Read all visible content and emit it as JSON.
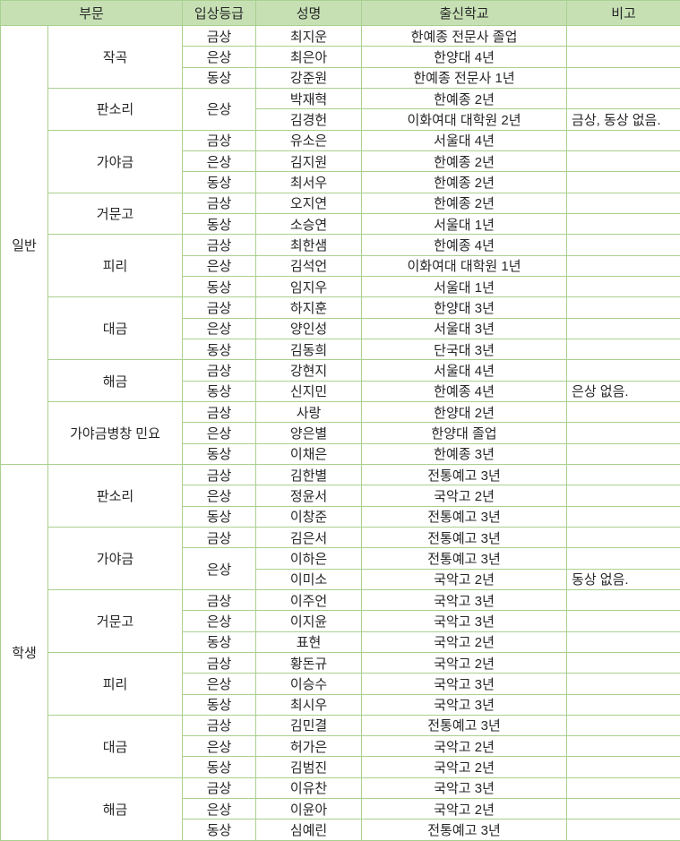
{
  "table": {
    "columns": [
      "부문",
      "입상등급",
      "성명",
      "출신학교",
      "비고"
    ],
    "colors": {
      "header_bg": "#c6e0b4",
      "border": "#a9d08e",
      "text": "#262626",
      "cell_bg": "#ffffff"
    },
    "sections": [
      {
        "label": "일반",
        "categories": [
          {
            "name": "작곡",
            "groups": [
              {
                "grade": "금상",
                "entries": [
                  {
                    "name": "최지운",
                    "school": "한예종 전문사 졸업",
                    "note": ""
                  }
                ]
              },
              {
                "grade": "은상",
                "entries": [
                  {
                    "name": "최은아",
                    "school": "한양대 4년",
                    "note": ""
                  }
                ]
              },
              {
                "grade": "동상",
                "entries": [
                  {
                    "name": "강준원",
                    "school": "한예종 전문사 1년",
                    "note": ""
                  }
                ]
              }
            ]
          },
          {
            "name": "판소리",
            "groups": [
              {
                "grade": "은상",
                "entries": [
                  {
                    "name": "박재혁",
                    "school": "한예종 2년",
                    "note": ""
                  },
                  {
                    "name": "김경헌",
                    "school": "이화여대 대학원 2년",
                    "note": "금상, 동상 없음."
                  }
                ]
              }
            ]
          },
          {
            "name": "가야금",
            "groups": [
              {
                "grade": "금상",
                "entries": [
                  {
                    "name": "유소은",
                    "school": "서울대 4년",
                    "note": ""
                  }
                ]
              },
              {
                "grade": "은상",
                "entries": [
                  {
                    "name": "김지원",
                    "school": "한예종 2년",
                    "note": ""
                  }
                ]
              },
              {
                "grade": "동상",
                "entries": [
                  {
                    "name": "최서우",
                    "school": "한예종 2년",
                    "note": ""
                  }
                ]
              }
            ]
          },
          {
            "name": "거문고",
            "groups": [
              {
                "grade": "금상",
                "entries": [
                  {
                    "name": "오지연",
                    "school": "한예종 2년",
                    "note": ""
                  }
                ]
              },
              {
                "grade": "동상",
                "entries": [
                  {
                    "name": "소승연",
                    "school": "서울대 1년",
                    "note": ""
                  }
                ]
              }
            ]
          },
          {
            "name": "피리",
            "groups": [
              {
                "grade": "금상",
                "entries": [
                  {
                    "name": "최한샘",
                    "school": "한예종 4년",
                    "note": ""
                  }
                ]
              },
              {
                "grade": "은상",
                "entries": [
                  {
                    "name": "김석언",
                    "school": "이화여대 대학원 1년",
                    "note": ""
                  }
                ]
              },
              {
                "grade": "동상",
                "entries": [
                  {
                    "name": "임지우",
                    "school": "서울대 1년",
                    "note": ""
                  }
                ]
              }
            ]
          },
          {
            "name": "대금",
            "groups": [
              {
                "grade": "금상",
                "entries": [
                  {
                    "name": "하지훈",
                    "school": "한양대 3년",
                    "note": ""
                  }
                ]
              },
              {
                "grade": "은상",
                "entries": [
                  {
                    "name": "양인성",
                    "school": "서울대 3년",
                    "note": ""
                  }
                ]
              },
              {
                "grade": "동상",
                "entries": [
                  {
                    "name": "김동희",
                    "school": "단국대 3년",
                    "note": ""
                  }
                ]
              }
            ]
          },
          {
            "name": "해금",
            "groups": [
              {
                "grade": "금상",
                "entries": [
                  {
                    "name": "강현지",
                    "school": "서울대 4년",
                    "note": ""
                  }
                ]
              },
              {
                "grade": "동상",
                "entries": [
                  {
                    "name": "신지민",
                    "school": "한예종 4년",
                    "note": "은상 없음."
                  }
                ]
              }
            ]
          },
          {
            "name": "가야금병창 민요",
            "groups": [
              {
                "grade": "금상",
                "entries": [
                  {
                    "name": "사랑",
                    "school": "한양대 2년",
                    "note": ""
                  }
                ]
              },
              {
                "grade": "은상",
                "entries": [
                  {
                    "name": "양은별",
                    "school": "한양대 졸업",
                    "note": ""
                  }
                ]
              },
              {
                "grade": "동상",
                "entries": [
                  {
                    "name": "이채은",
                    "school": "한예종 3년",
                    "note": ""
                  }
                ]
              }
            ]
          }
        ]
      },
      {
        "label": "학생",
        "categories": [
          {
            "name": "판소리",
            "groups": [
              {
                "grade": "금상",
                "entries": [
                  {
                    "name": "김한별",
                    "school": "전통예고 3년",
                    "note": ""
                  }
                ]
              },
              {
                "grade": "은상",
                "entries": [
                  {
                    "name": "정윤서",
                    "school": "국악고 2년",
                    "note": ""
                  }
                ]
              },
              {
                "grade": "동상",
                "entries": [
                  {
                    "name": "이창준",
                    "school": "전통예고 3년",
                    "note": ""
                  }
                ]
              }
            ]
          },
          {
            "name": "가야금",
            "groups": [
              {
                "grade": "금상",
                "entries": [
                  {
                    "name": "김은서",
                    "school": "전통예고 3년",
                    "note": ""
                  }
                ]
              },
              {
                "grade": "은상",
                "entries": [
                  {
                    "name": "이하은",
                    "school": "전통예고 3년",
                    "note": ""
                  },
                  {
                    "name": "이미소",
                    "school": "국악고 2년",
                    "note": "동상 없음."
                  }
                ]
              }
            ]
          },
          {
            "name": "거문고",
            "groups": [
              {
                "grade": "금상",
                "entries": [
                  {
                    "name": "이주언",
                    "school": "국악고 3년",
                    "note": ""
                  }
                ]
              },
              {
                "grade": "은상",
                "entries": [
                  {
                    "name": "이지윤",
                    "school": "국악고 3년",
                    "note": ""
                  }
                ]
              },
              {
                "grade": "동상",
                "entries": [
                  {
                    "name": "표현",
                    "school": "국악고 2년",
                    "note": ""
                  }
                ]
              }
            ]
          },
          {
            "name": "피리",
            "groups": [
              {
                "grade": "금상",
                "entries": [
                  {
                    "name": "황돈규",
                    "school": "국악고 2년",
                    "note": ""
                  }
                ]
              },
              {
                "grade": "은상",
                "entries": [
                  {
                    "name": "이승수",
                    "school": "국악고 3년",
                    "note": ""
                  }
                ]
              },
              {
                "grade": "동상",
                "entries": [
                  {
                    "name": "최시우",
                    "school": "국악고 3년",
                    "note": ""
                  }
                ]
              }
            ]
          },
          {
            "name": "대금",
            "groups": [
              {
                "grade": "금상",
                "entries": [
                  {
                    "name": "김민결",
                    "school": "전통예고 3년",
                    "note": ""
                  }
                ]
              },
              {
                "grade": "은상",
                "entries": [
                  {
                    "name": "허가은",
                    "school": "국악고 2년",
                    "note": ""
                  }
                ]
              },
              {
                "grade": "동상",
                "entries": [
                  {
                    "name": "김범진",
                    "school": "국악고 2년",
                    "note": ""
                  }
                ]
              }
            ]
          },
          {
            "name": "해금",
            "groups": [
              {
                "grade": "금상",
                "entries": [
                  {
                    "name": "이유찬",
                    "school": "국악고 3년",
                    "note": ""
                  }
                ]
              },
              {
                "grade": "은상",
                "entries": [
                  {
                    "name": "이윤아",
                    "school": "국악고 2년",
                    "note": ""
                  }
                ]
              },
              {
                "grade": "동상",
                "entries": [
                  {
                    "name": "심예린",
                    "school": "전통예고 3년",
                    "note": ""
                  }
                ]
              }
            ]
          }
        ]
      }
    ]
  }
}
